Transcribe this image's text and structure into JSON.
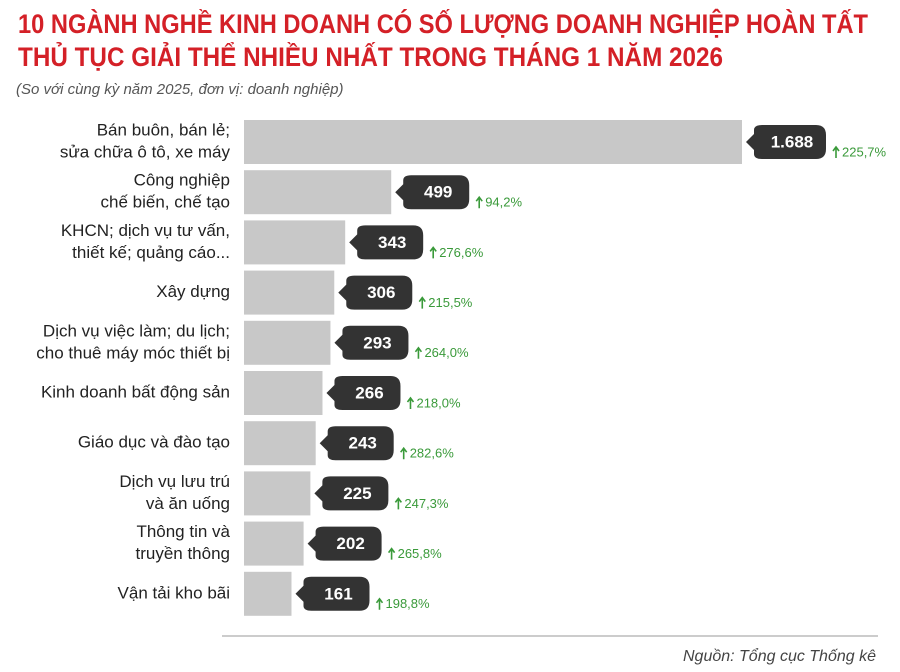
{
  "chart_data": {
    "type": "bar",
    "orientation": "horizontal",
    "title": [
      "10 NGÀNH NGHỀ KINH DOANH CÓ SỐ LƯỢNG DOANH NGHIỆP HOÀN TẤT",
      "THỦ TỤC GIẢI THỂ NHIỀU NHẤT TRONG THÁNG 1 NĂM 2026"
    ],
    "subtitle": "(So với cùng kỳ năm 2025, đơn vị: doanh nghiệp)",
    "categories": [
      [
        "Bán buôn, bán lẻ;",
        "sửa chữa ô tô, xe máy"
      ],
      [
        "Công nghiệp",
        "chế biến, chế tạo"
      ],
      [
        "KHCN; dịch vụ tư vấn,",
        "thiết kế; quảng cáo..."
      ],
      [
        "Xây dựng"
      ],
      [
        "Dịch vụ việc làm; du lịch;",
        "cho thuê máy móc thiết bị"
      ],
      [
        "Kinh doanh bất động sản"
      ],
      [
        "Giáo dục và đào tạo"
      ],
      [
        "Dịch vụ lưu trú",
        "và ăn uống"
      ],
      [
        "Thông tin và",
        "truyền thông"
      ],
      [
        "Vận tải kho bãi"
      ]
    ],
    "values": [
      1688,
      499,
      343,
      306,
      293,
      266,
      243,
      225,
      202,
      161
    ],
    "value_labels": [
      "1.688",
      "499",
      "343",
      "306",
      "293",
      "266",
      "243",
      "225",
      "202",
      "161"
    ],
    "changes": [
      225.7,
      94.2,
      276.6,
      215.5,
      264.0,
      218.0,
      282.6,
      247.3,
      265.8,
      198.8
    ],
    "change_labels": [
      "225,7%",
      "94,2%",
      "276,6%",
      "215,5%",
      "264,0%",
      "218,0%",
      "282,6%",
      "247,3%",
      "265,8%",
      "198,8%"
    ],
    "color": "#c8c8c8",
    "label_color": "#333333",
    "change_color": "#3a9a3a",
    "title_color": "#d42027",
    "source": "Nguồn: Tổng cục Thống kê"
  }
}
